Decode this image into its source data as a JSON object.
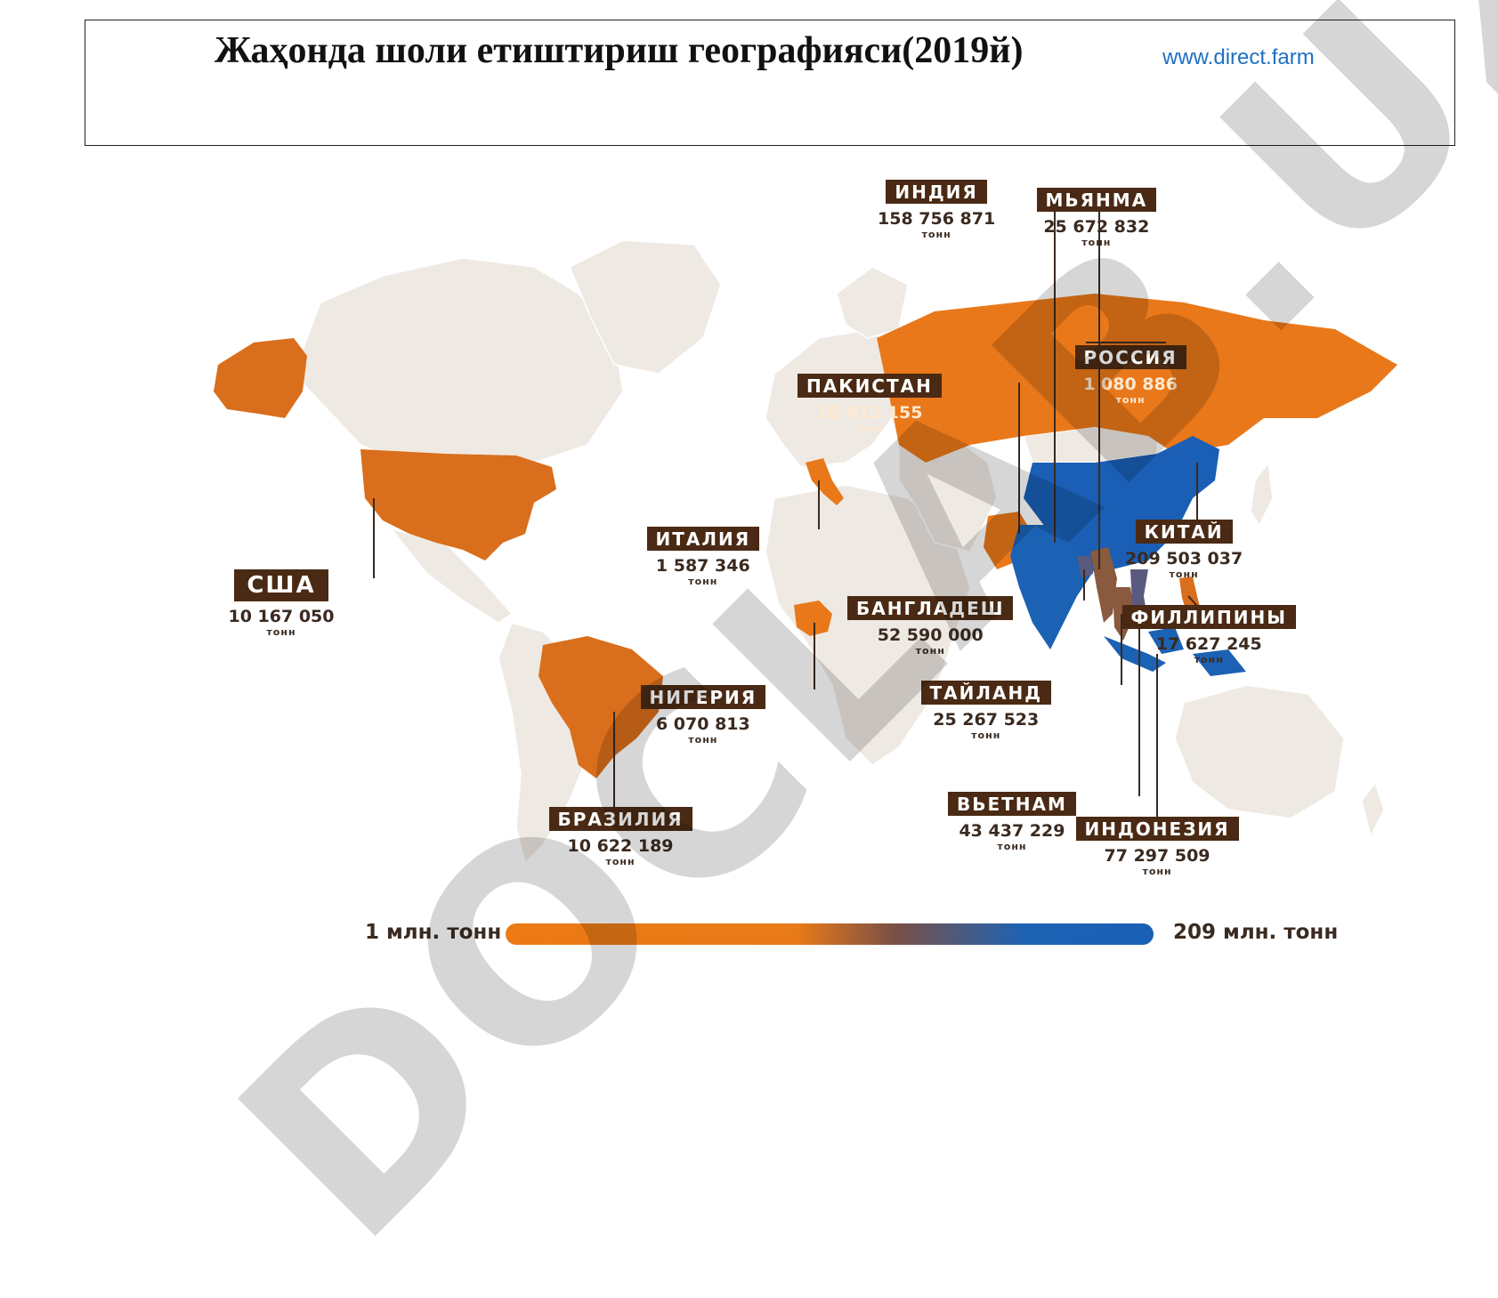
{
  "header": {
    "title": "Жаҳонда шоли етиштириш географияси(2019й)",
    "source": "www.direct.farm"
  },
  "map": {
    "unit": "тонн",
    "countries": [
      {
        "key": "india",
        "name": "ИНДИЯ",
        "value": "158 756 871",
        "unit": "тонн",
        "color": "#1c62b4"
      },
      {
        "key": "myanmar",
        "name": "МЬЯНМА",
        "value": "25 672 832",
        "unit": "тонн",
        "color": "#8a5a3e"
      },
      {
        "key": "russia",
        "name": "РОССИЯ",
        "value": "1 080 886",
        "unit": "тонн",
        "color": "#e9781a"
      },
      {
        "key": "pakistan",
        "name": "ПАКИСТАН",
        "value": "10 412 155",
        "unit": "тонн",
        "color": "#e9781a"
      },
      {
        "key": "china",
        "name": "КИТАЙ",
        "value": "209 503 037",
        "unit": "тонн",
        "color": "#1a5fb5"
      },
      {
        "key": "italy",
        "name": "ИТАЛИЯ",
        "value": "1 587 346",
        "unit": "тонн",
        "color": "#e9781a"
      },
      {
        "key": "usa",
        "name": "США",
        "value": "10 167 050",
        "unit": "тонн",
        "color": "#d96e1c"
      },
      {
        "key": "bangladesh",
        "name": "БАНГЛАДЕШ",
        "value": "52 590 000",
        "unit": "тонн",
        "color": "#5a5a80"
      },
      {
        "key": "philippines",
        "name": "ФИЛЛИПИНЫ",
        "value": "17 627 245",
        "unit": "тонн",
        "color": "#d96e1c"
      },
      {
        "key": "nigeria",
        "name": "НИГЕРИЯ",
        "value": "6 070 813",
        "unit": "тонн",
        "color": "#e9781a"
      },
      {
        "key": "thailand",
        "name": "ТАЙЛАНД",
        "value": "25 267 523",
        "unit": "тонн",
        "color": "#8a5a3e"
      },
      {
        "key": "brazil",
        "name": "БРАЗИЛИЯ",
        "value": "10 622 189",
        "unit": "тонн",
        "color": "#d96e1c"
      },
      {
        "key": "vietnam",
        "name": "ВЬЕТНАМ",
        "value": "43 437 229",
        "unit": "тонн",
        "color": "#5a5a80"
      },
      {
        "key": "indonesia",
        "name": "ИНДОНЕЗИЯ",
        "value": "77 297 509",
        "unit": "тонн",
        "color": "#1c62b4"
      }
    ]
  },
  "scale": {
    "min_label": "1 млн. тонн",
    "max_label": "209 млн. тонн",
    "min_color": "#ec7a14",
    "max_color": "#1a5fb5"
  },
  "watermark": "DOCLAB.UZ"
}
